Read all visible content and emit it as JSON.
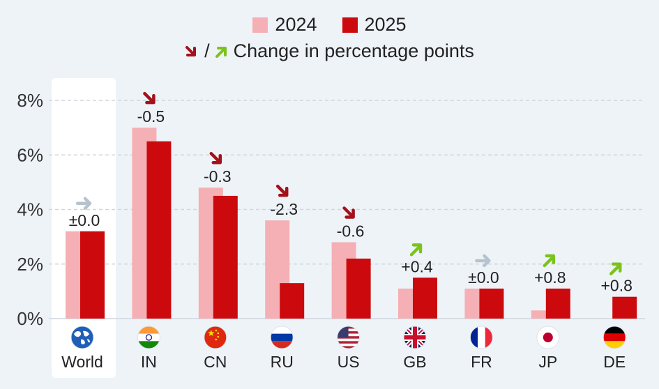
{
  "colors": {
    "s2024": "#f4b0b4",
    "s2025": "#cc0a0e",
    "down_arrow": "#a3121b",
    "up_arrow": "#7bc31b",
    "flat_arrow": "#b6c3ce",
    "grid": "#cfd6de",
    "highlight_bg": "#ffffff"
  },
  "legend": {
    "item_2024": "2024",
    "item_2025": "2025",
    "separator": "/",
    "change_note": "Change in percentage points"
  },
  "chart_data": {
    "type": "bar",
    "categories": [
      "World",
      "IN",
      "CN",
      "RU",
      "US",
      "GB",
      "FR",
      "JP",
      "DE"
    ],
    "series": [
      {
        "name": "2024",
        "values": [
          3.2,
          7.0,
          4.8,
          3.6,
          2.8,
          1.1,
          1.1,
          0.3,
          0.0
        ]
      },
      {
        "name": "2025",
        "values": [
          3.2,
          6.5,
          4.5,
          1.3,
          2.2,
          1.5,
          1.1,
          1.1,
          0.8
        ]
      }
    ],
    "change_labels": [
      "±0.0",
      "-0.5",
      "-0.3",
      "-2.3",
      "-0.6",
      "+0.4",
      "±0.0",
      "+0.8",
      "+0.8"
    ],
    "change_direction": [
      "flat",
      "down",
      "down",
      "down",
      "down",
      "up",
      "flat",
      "up",
      "up"
    ],
    "flag_icons": [
      "globe-icon",
      "india-flag-icon",
      "china-flag-icon",
      "russia-flag-icon",
      "usa-flag-icon",
      "uk-flag-icon",
      "france-flag-icon",
      "japan-flag-icon",
      "germany-flag-icon"
    ],
    "yticks": [
      "0%",
      "2%",
      "4%",
      "6%",
      "8%"
    ],
    "ytick_values": [
      0,
      2,
      4,
      6,
      8
    ],
    "ylim": [
      0,
      8
    ],
    "highlighted_category": "World",
    "grid": true,
    "legend_position": "top-center"
  }
}
